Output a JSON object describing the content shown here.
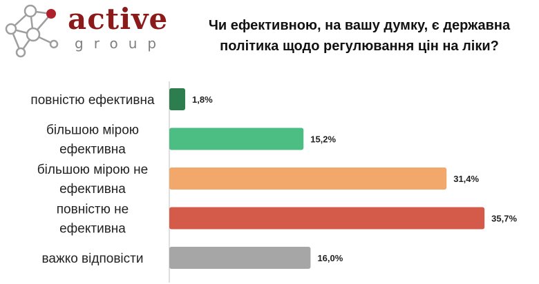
{
  "logo": {
    "word": "active",
    "sub": "group"
  },
  "title_lines": [
    "Чи ефективною, на вашу думку, є державна",
    "політика щодо регулювання цін на ліки?"
  ],
  "chart_data": {
    "type": "bar",
    "orientation": "horizontal",
    "categories": [
      [
        "повністю ефективна"
      ],
      [
        "більшою мірою",
        "ефективна"
      ],
      [
        "більшою мірою не",
        "ефективна"
      ],
      [
        "повністю не",
        "ефективна"
      ],
      [
        "важко відповісти"
      ]
    ],
    "values": [
      1.8,
      15.2,
      31.4,
      35.7,
      16.0
    ],
    "value_labels": [
      "1,8%",
      "15,2%",
      "31,4%",
      "35,7%",
      "16,0%"
    ],
    "colors": [
      "#2e7d4f",
      "#4cbe84",
      "#f2a86a",
      "#d45a4a",
      "#a6a6a6"
    ],
    "xlim": [
      0,
      36
    ],
    "grid": false,
    "legend": "none"
  }
}
